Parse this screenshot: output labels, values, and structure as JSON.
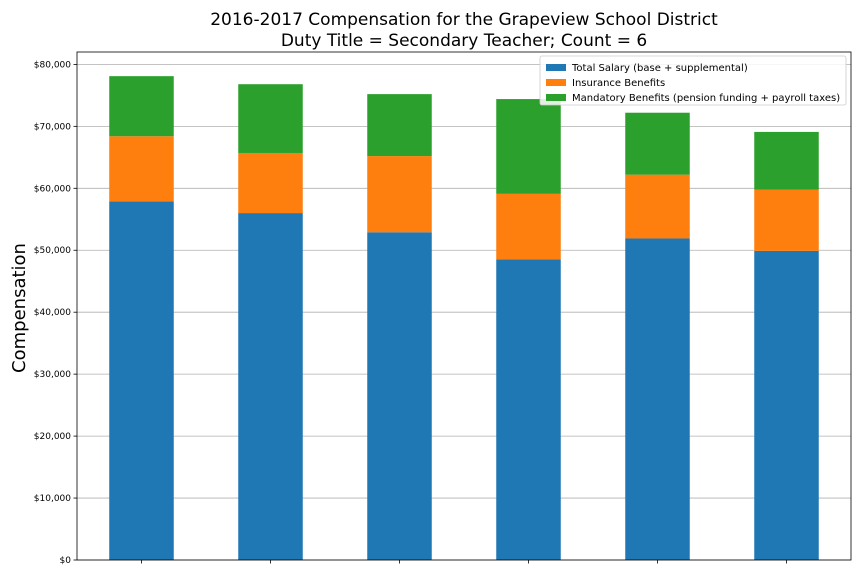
{
  "chart_data": {
    "type": "bar",
    "stacked": true,
    "title": "2016-2017 Compensation for the Grapeview School District",
    "subtitle": "Duty Title = Secondary Teacher; Count = 6",
    "xlabel": "",
    "ylabel": "Compensation",
    "ylim": [
      0,
      82000
    ],
    "yticks": [
      0,
      10000,
      20000,
      30000,
      40000,
      50000,
      60000,
      70000,
      80000
    ],
    "ytick_labels": [
      "$0",
      "$10,000",
      "$20,000",
      "$30,000",
      "$40,000",
      "$50,000",
      "$60,000",
      "$70,000",
      "$80,000"
    ],
    "grid": "horizontal",
    "legend_position": "top-right",
    "categories": [
      "",
      "",
      "",
      "",
      "",
      ""
    ],
    "series": [
      {
        "name": "Total Salary (base + supplemental)",
        "color": "#1f77b4",
        "values": [
          57900,
          56000,
          52900,
          48500,
          51900,
          49900
        ]
      },
      {
        "name": "Insurance Benefits",
        "color": "#ff7f0e",
        "values": [
          10500,
          9700,
          12300,
          10600,
          10300,
          9900
        ]
      },
      {
        "name": "Mandatory Benefits (pension funding + payroll taxes)",
        "color": "#2ca02c",
        "values": [
          9700,
          11100,
          10000,
          15300,
          10000,
          9300
        ]
      }
    ]
  }
}
